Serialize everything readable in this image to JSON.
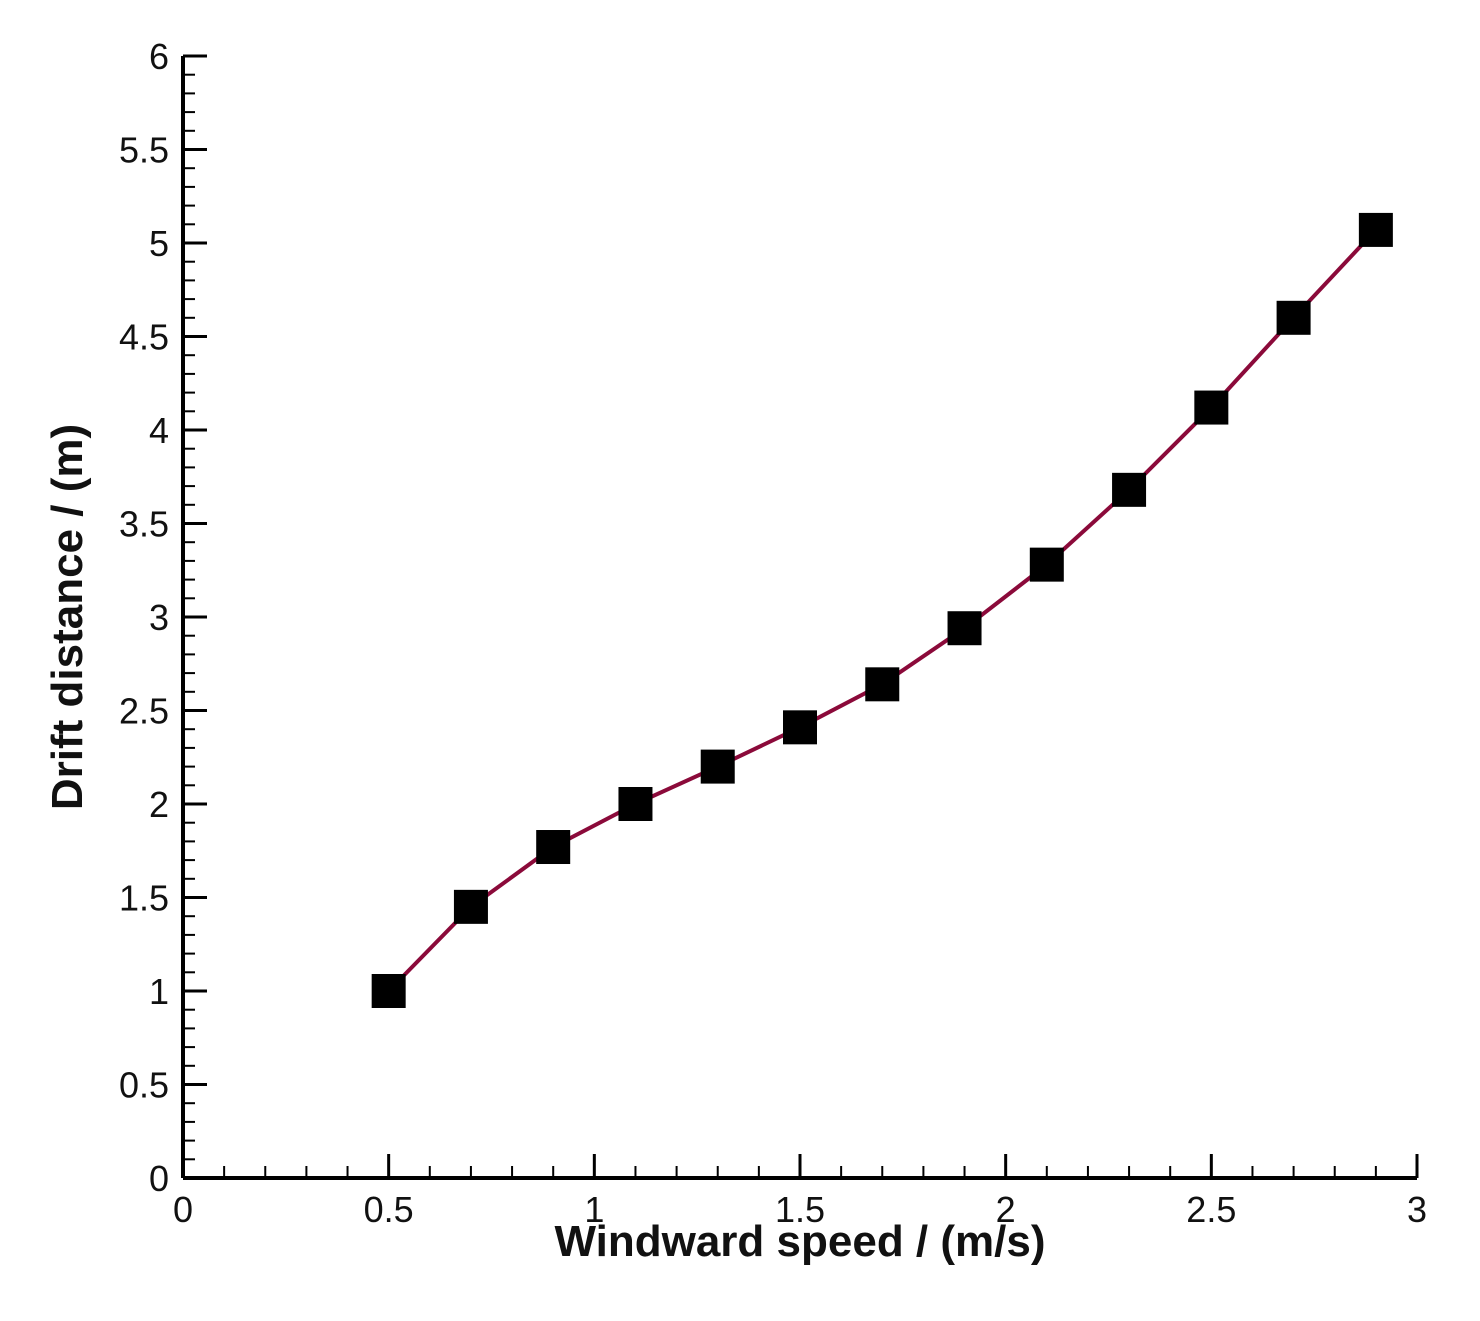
{
  "chart_data": {
    "type": "line",
    "xlabel": "Windward speed / (m/s)",
    "ylabel": "Drift distance / (m)",
    "x": [
      0.5,
      0.7,
      0.9,
      1.1,
      1.3,
      1.5,
      1.7,
      1.9,
      2.1,
      2.3,
      2.5,
      2.7,
      2.9
    ],
    "series": [
      {
        "color": "#8b0a3a",
        "marker_color": "#000000",
        "values": [
          1.0,
          1.45,
          1.77,
          2.0,
          2.2,
          2.41,
          2.64,
          2.94,
          3.28,
          3.68,
          4.12,
          4.6,
          5.07
        ]
      }
    ],
    "xlim": [
      0,
      3
    ],
    "xticks": [
      0,
      0.5,
      1,
      1.5,
      2,
      2.5,
      3
    ],
    "ylim": [
      0,
      6
    ],
    "yticks": [
      0,
      0.5,
      1,
      1.5,
      2,
      2.5,
      3,
      3.5,
      4,
      4.5,
      5,
      5.5,
      6
    ],
    "grid": false
  }
}
